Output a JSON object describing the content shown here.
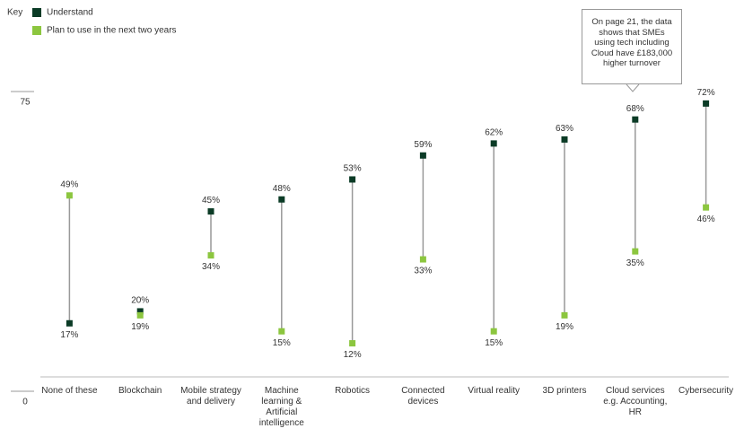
{
  "chart_data": {
    "type": "dumbbell",
    "legend_title": "Key",
    "categories": [
      "None of these",
      "Blockchain",
      "Mobile strategy and delivery",
      "Machine learning & Artificial intelligence",
      "Robotics",
      "Connected devices",
      "Virtual reality",
      "3D printers",
      "Cloud services e.g. Accounting, HR",
      "Cybersecurity"
    ],
    "series": [
      {
        "name": "Understand",
        "color": "#0b3b26",
        "values": [
          17,
          20,
          45,
          48,
          53,
          59,
          62,
          63,
          68,
          72
        ],
        "value_labels": [
          "17%",
          "20%",
          "45%",
          "48%",
          "53%",
          "59%",
          "62%",
          "63%",
          "68%",
          "72%"
        ]
      },
      {
        "name": "Plan to use in the next two years",
        "color": "#8cc63f",
        "values": [
          49,
          19,
          34,
          15,
          12,
          33,
          15,
          19,
          35,
          46
        ],
        "value_labels": [
          "49%",
          "19%",
          "34%",
          "15%",
          "12%",
          "33%",
          "15%",
          "19%",
          "35%",
          "46%"
        ]
      }
    ],
    "ylim": [
      0,
      75
    ],
    "yticks": [
      0,
      75
    ],
    "annotation": "On page 21, the data shows that SMEs using tech including Cloud have £183,000 higher turnover"
  }
}
